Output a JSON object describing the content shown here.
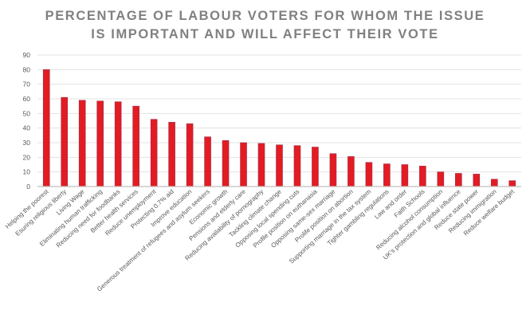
{
  "chart_data": {
    "type": "bar",
    "title": "PERCENTAGE OF LABOUR VOTERS FOR WHOM THE ISSUE IS IMPORTANT AND WILL AFFECT THEIR VOTE",
    "title_lines": [
      "PERCENTAGE OF LABOUR VOTERS FOR WHOM THE ISSUE",
      "IS IMPORTANT AND WILL AFFECT THEIR VOTE"
    ],
    "xlabel": "",
    "ylabel": "",
    "ylim": [
      0,
      90
    ],
    "yticks": [
      0,
      10,
      20,
      30,
      40,
      50,
      60,
      70,
      80,
      90
    ],
    "grid": true,
    "legend": "none",
    "bar_color": "#e31b23",
    "categories": [
      "Helping the poorest",
      "Esuring religious liberty",
      "Living Wage",
      "Eliminating human trafficking",
      "Reducing need for foodbanks",
      "Better health services",
      "Reduce unemployment",
      "Protecting 0.7% aid",
      "Improve education",
      "Generous treatment of refugees and asylum seekers",
      "Economic growth",
      "Pensions and elderly care",
      "Reducing availability of pornography",
      "Tackling climate change",
      "Opposing local spending cuts",
      "Profile position on euthanasia",
      "Opposing same-sex marriage",
      "Prolife position on abortion",
      "Supporting marriage in the tax system",
      "Tighter gambling regulations",
      "Law and order",
      "Faith Schools",
      "Reducing alcohol consumption",
      "UK's protection and global influence",
      "Reduce state power",
      "Reducing immigration",
      "Reduce welfare budget"
    ],
    "values": [
      80,
      61,
      59,
      58.5,
      58,
      55,
      46,
      44,
      43,
      34,
      31.5,
      30,
      29.5,
      28.5,
      28,
      27,
      22.5,
      20.5,
      16.5,
      15.5,
      15,
      14,
      10,
      9,
      8.5,
      5,
      4
    ]
  }
}
